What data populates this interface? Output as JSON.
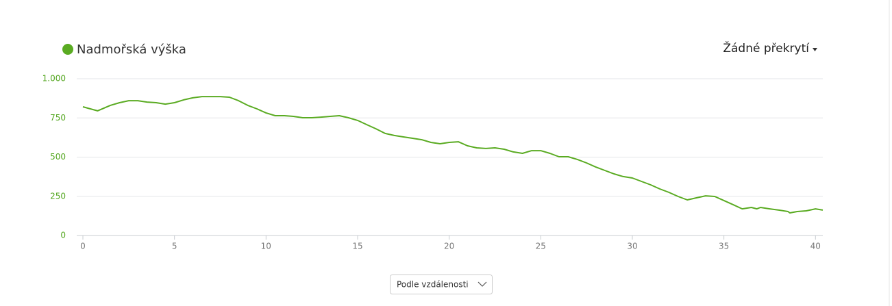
{
  "chart_data": {
    "type": "line",
    "x": [
      0,
      0.8,
      1.5,
      2,
      2.5,
      3,
      3.5,
      4,
      4.5,
      5,
      5.5,
      6,
      6.5,
      7,
      7.5,
      8,
      8.5,
      9,
      9.5,
      10,
      10.5,
      11,
      11.5,
      12,
      12.5,
      13,
      13.5,
      14,
      14.5,
      15,
      15.5,
      16,
      16.5,
      17,
      17.5,
      18,
      18.5,
      19,
      19.5,
      20,
      20.5,
      21,
      21.5,
      22,
      22.5,
      23,
      23.5,
      24,
      24.5,
      25,
      25.5,
      26,
      26.5,
      27,
      27.5,
      28,
      28.5,
      29,
      29.5,
      30,
      30.5,
      31,
      31.5,
      32,
      32.5,
      33,
      33.5,
      34,
      34.5,
      35,
      35.5,
      36,
      36.5,
      36.8,
      37,
      37.5,
      38,
      38.5,
      38.6,
      39,
      39.5,
      40,
      40.4
    ],
    "series": [
      {
        "name": "Nadmořská výška",
        "color": "#5aab22",
        "values": [
          821,
          795,
          830,
          847,
          860,
          860,
          851,
          847,
          838,
          847,
          865,
          878,
          886,
          886,
          886,
          882,
          860,
          830,
          808,
          782,
          764,
          764,
          760,
          751,
          751,
          755,
          760,
          764,
          751,
          734,
          707,
          681,
          651,
          638,
          629,
          620,
          611,
          594,
          585,
          594,
          598,
          572,
          559,
          555,
          559,
          550,
          533,
          524,
          541,
          541,
          524,
          502,
          502,
          485,
          463,
          437,
          415,
          393,
          376,
          367,
          345,
          323,
          297,
          275,
          249,
          227,
          240,
          253,
          249,
          223,
          197,
          170,
          179,
          170,
          179,
          170,
          162,
          153,
          144,
          153,
          157,
          170,
          162
        ]
      }
    ],
    "xlim": [
      0,
      40.4
    ],
    "xticks": [
      0,
      5,
      10,
      15,
      20,
      25,
      30,
      35,
      40
    ],
    "ylim": [
      0,
      1000
    ],
    "yticks": [
      0,
      250,
      500,
      750,
      {
        "value": 1000,
        "label": "1.000"
      }
    ],
    "grid": true
  },
  "overlay_menu": "Žádné překrytí",
  "sort_select": "Podle vzdálenosti"
}
